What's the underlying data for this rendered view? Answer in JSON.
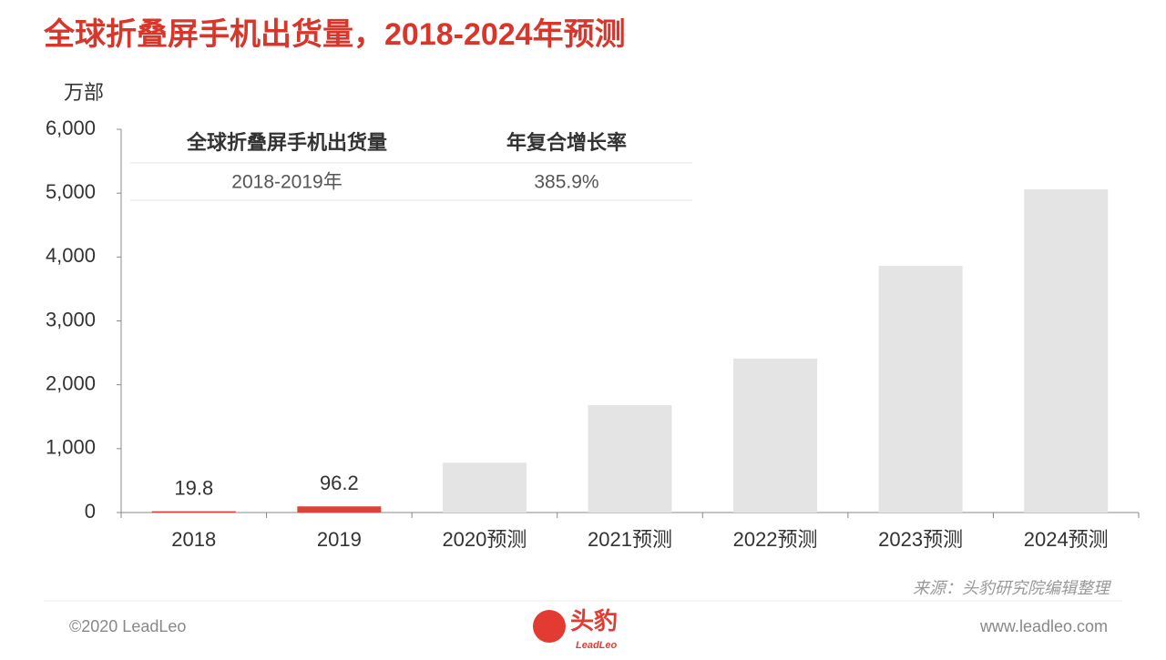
{
  "chart_data": {
    "type": "bar",
    "title": "全球折叠屏手机出货量，2018-2024年预测",
    "ylabel": "万部",
    "categories": [
      "2018",
      "2019",
      "2020预测",
      "2021预测",
      "2022预测",
      "2023预测",
      "2024预测"
    ],
    "values": [
      19.8,
      96.2,
      780,
      1680,
      2410,
      3860,
      5060
    ],
    "value_labels": [
      "19.8",
      "96.2",
      null,
      null,
      null,
      null,
      null
    ],
    "colors": [
      "#d9433a",
      "#d9433a",
      "#e4e4e4",
      "#e4e4e4",
      "#e4e4e4",
      "#e4e4e4",
      "#e4e4e4"
    ],
    "ylim": [
      0,
      6000
    ],
    "yticks": [
      0,
      {
        "value": 1000,
        "label": "1,000"
      },
      {
        "value": 2000,
        "label": "2,000"
      },
      {
        "value": 3000,
        "label": "3,000"
      },
      {
        "value": 4000,
        "label": "4,000"
      },
      {
        "value": 5000,
        "label": "5,000"
      },
      {
        "value": 6000,
        "label": "6,000"
      }
    ],
    "grid": false,
    "table": {
      "header": [
        "全球折叠屏手机出货量",
        "年复合增长率"
      ],
      "rows": [
        [
          "2018-2019年",
          "385.9%"
        ]
      ]
    },
    "source": "来源：头豹研究院编辑整理"
  },
  "footer": {
    "copyright": "©2020 LeadLeo",
    "logo": "头豹",
    "logo_sub": "LeadLeo",
    "url": "www.leadleo.com"
  }
}
